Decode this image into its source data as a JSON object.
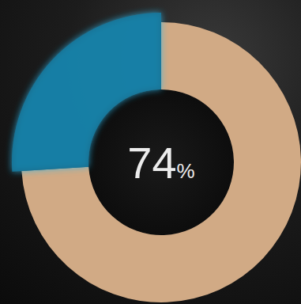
{
  "chart_data": {
    "type": "donut",
    "categories": [
      null,
      null
    ],
    "values": [
      74,
      26
    ],
    "value_labels": [
      "74%",
      null
    ],
    "colors": [
      "#d1aa85",
      "#14799f"
    ],
    "data_labels": true
  }
}
